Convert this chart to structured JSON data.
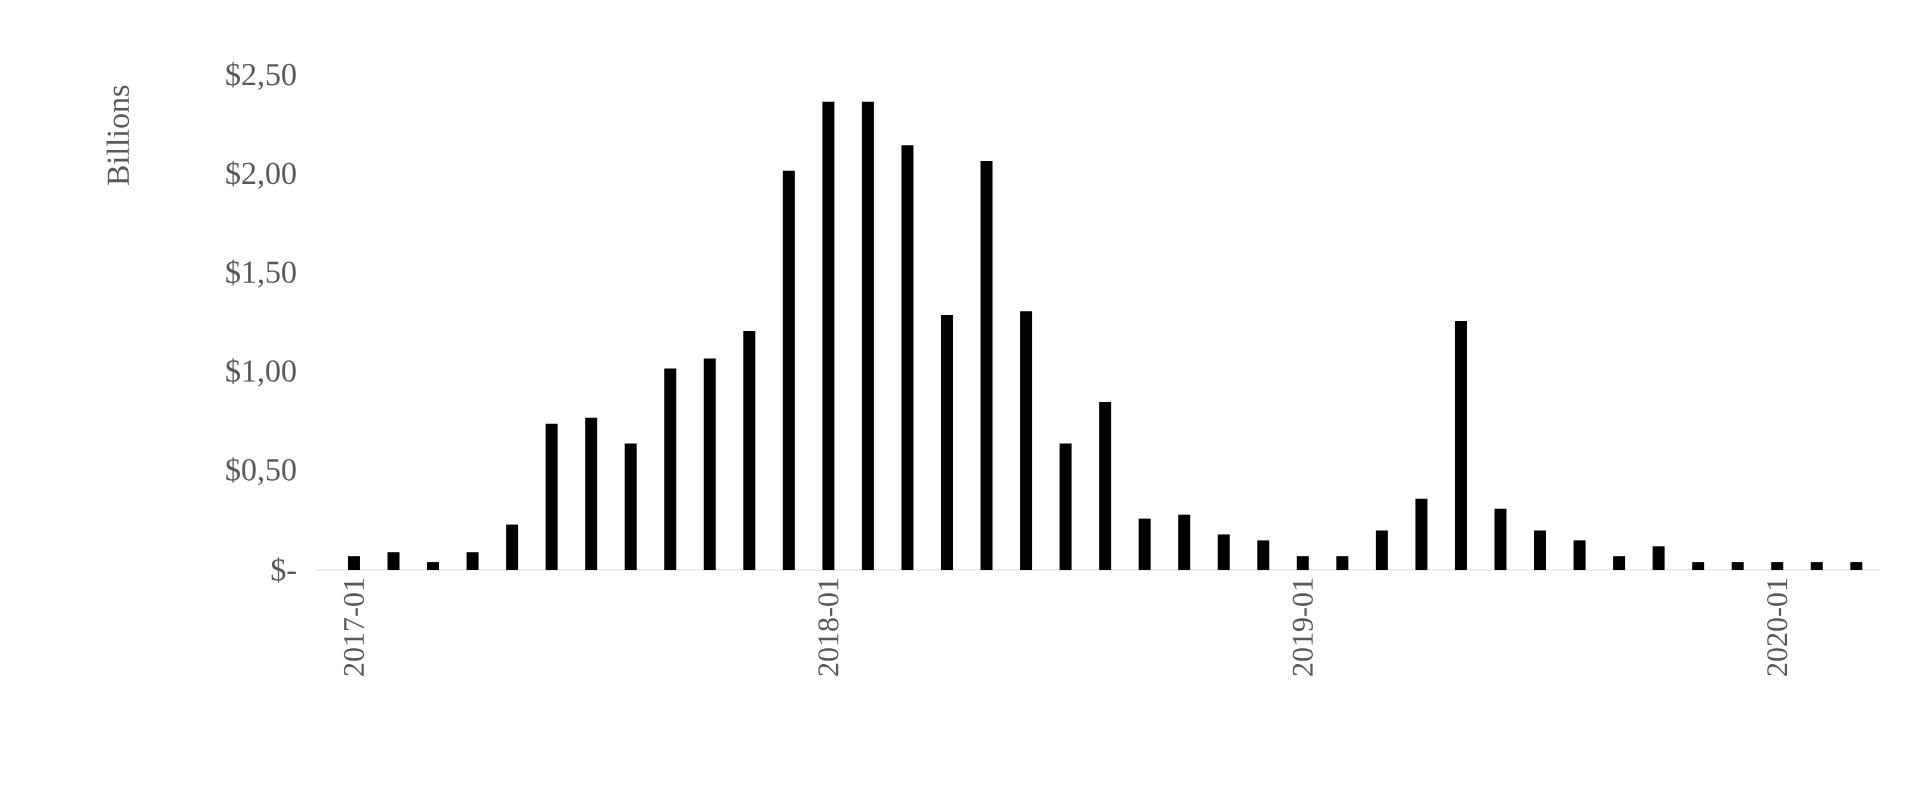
{
  "chart_data": {
    "type": "bar",
    "ylabel": "Billions",
    "categories": [
      "2017-01",
      null,
      null,
      null,
      null,
      null,
      null,
      null,
      null,
      null,
      null,
      null,
      "2018-01",
      null,
      null,
      null,
      null,
      null,
      null,
      null,
      null,
      null,
      null,
      null,
      "2019-01",
      null,
      null,
      null,
      null,
      null,
      null,
      null,
      null,
      null,
      null,
      null,
      "2020-01",
      null,
      null
    ],
    "values": [
      0.07,
      0.09,
      0.04,
      0.09,
      0.23,
      0.74,
      0.77,
      0.64,
      1.02,
      1.07,
      1.21,
      2.02,
      2.37,
      2.37,
      2.15,
      1.29,
      2.07,
      1.31,
      0.64,
      0.85,
      0.26,
      0.28,
      0.18,
      0.15,
      0.07,
      0.07,
      0.2,
      0.36,
      1.26,
      0.31,
      0.2,
      0.15,
      0.07,
      0.12,
      0.04,
      0.04,
      0.04,
      0.04,
      0.04
    ],
    "color": "#000000",
    "ylim": [
      0,
      2.5
    ],
    "yticks": [
      {
        "value": 0,
        "label": "$-"
      },
      {
        "value": 0.5,
        "label": "$0,50"
      },
      {
        "value": 1.0,
        "label": "$1,00"
      },
      {
        "value": 1.5,
        "label": "$1,50"
      },
      {
        "value": 2.0,
        "label": "$2,00"
      },
      {
        "value": 2.5,
        "label": "$2,50"
      }
    ]
  }
}
